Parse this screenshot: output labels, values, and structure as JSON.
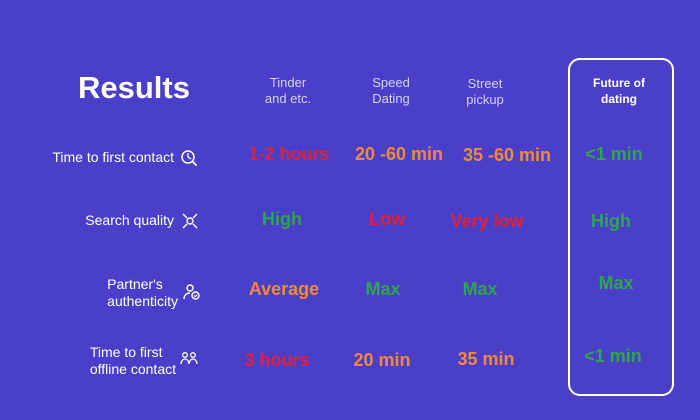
{
  "title": "Results",
  "columns": {
    "tinder": [
      "Tinder",
      "and etc."
    ],
    "speed": [
      "Speed",
      "Dating"
    ],
    "street": [
      "Street",
      "pickup"
    ],
    "future": [
      "Future of",
      "dating"
    ]
  },
  "rows": [
    {
      "label": [
        "Time to first contact"
      ],
      "icon": "clock-search-icon",
      "values": [
        "1-2 hours",
        "20 -60 min",
        "35 -60 min",
        "<1 min"
      ],
      "colors": [
        "red",
        "orange",
        "orange",
        "green"
      ]
    },
    {
      "label": [
        "Search quality"
      ],
      "icon": "target-people-icon",
      "values": [
        "High",
        "Low",
        "Very low",
        "High"
      ],
      "colors": [
        "green",
        "red",
        "red",
        "green"
      ]
    },
    {
      "label": [
        "Partner's",
        "authenticity"
      ],
      "icon": "verified-user-icon",
      "values": [
        "Average",
        "Max",
        "Max",
        "Max"
      ],
      "colors": [
        "orange",
        "green",
        "green",
        "green"
      ]
    },
    {
      "label": [
        "Time to first",
        "offline contact"
      ],
      "icon": "meeting-people-icon",
      "values": [
        "3 hours",
        "20 min",
        "35 min",
        "<1 min"
      ],
      "colors": [
        "red",
        "orange",
        "orange",
        "green"
      ]
    }
  ],
  "palette": {
    "background": "#4a3fc8",
    "red": "#e0203a",
    "orange": "#f08a3a",
    "green": "#2fa54c"
  }
}
